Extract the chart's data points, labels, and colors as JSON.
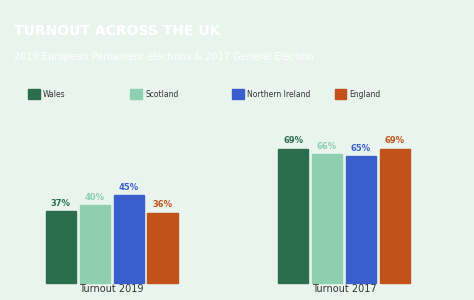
{
  "title_line1": "TURNOUT ACROSS THE UK",
  "title_line2": "2019 European Parliament elections & 2017 General Election",
  "header_bg": "#3a7d52",
  "chart_bg": "#eaf4ef",
  "groups": [
    "Turnout 2019",
    "Turnout 2017"
  ],
  "nations": [
    "Wales",
    "Scotland",
    "Northern Ireland",
    "England"
  ],
  "colors": [
    "#2a6e4e",
    "#8ecfb0",
    "#3a5fcd",
    "#c0521a"
  ],
  "values": {
    "Turnout 2019": [
      37,
      40,
      45,
      36
    ],
    "Turnout 2017": [
      69,
      66,
      65,
      69
    ]
  },
  "bar_labels": {
    "Turnout 2019": [
      "37%",
      "40%",
      "45%",
      "36%"
    ],
    "Turnout 2017": [
      "69%",
      "66%",
      "65%",
      "69%"
    ]
  },
  "ylim": [
    0,
    80
  ],
  "figsize": [
    4.74,
    3.0
  ],
  "dpi": 100
}
